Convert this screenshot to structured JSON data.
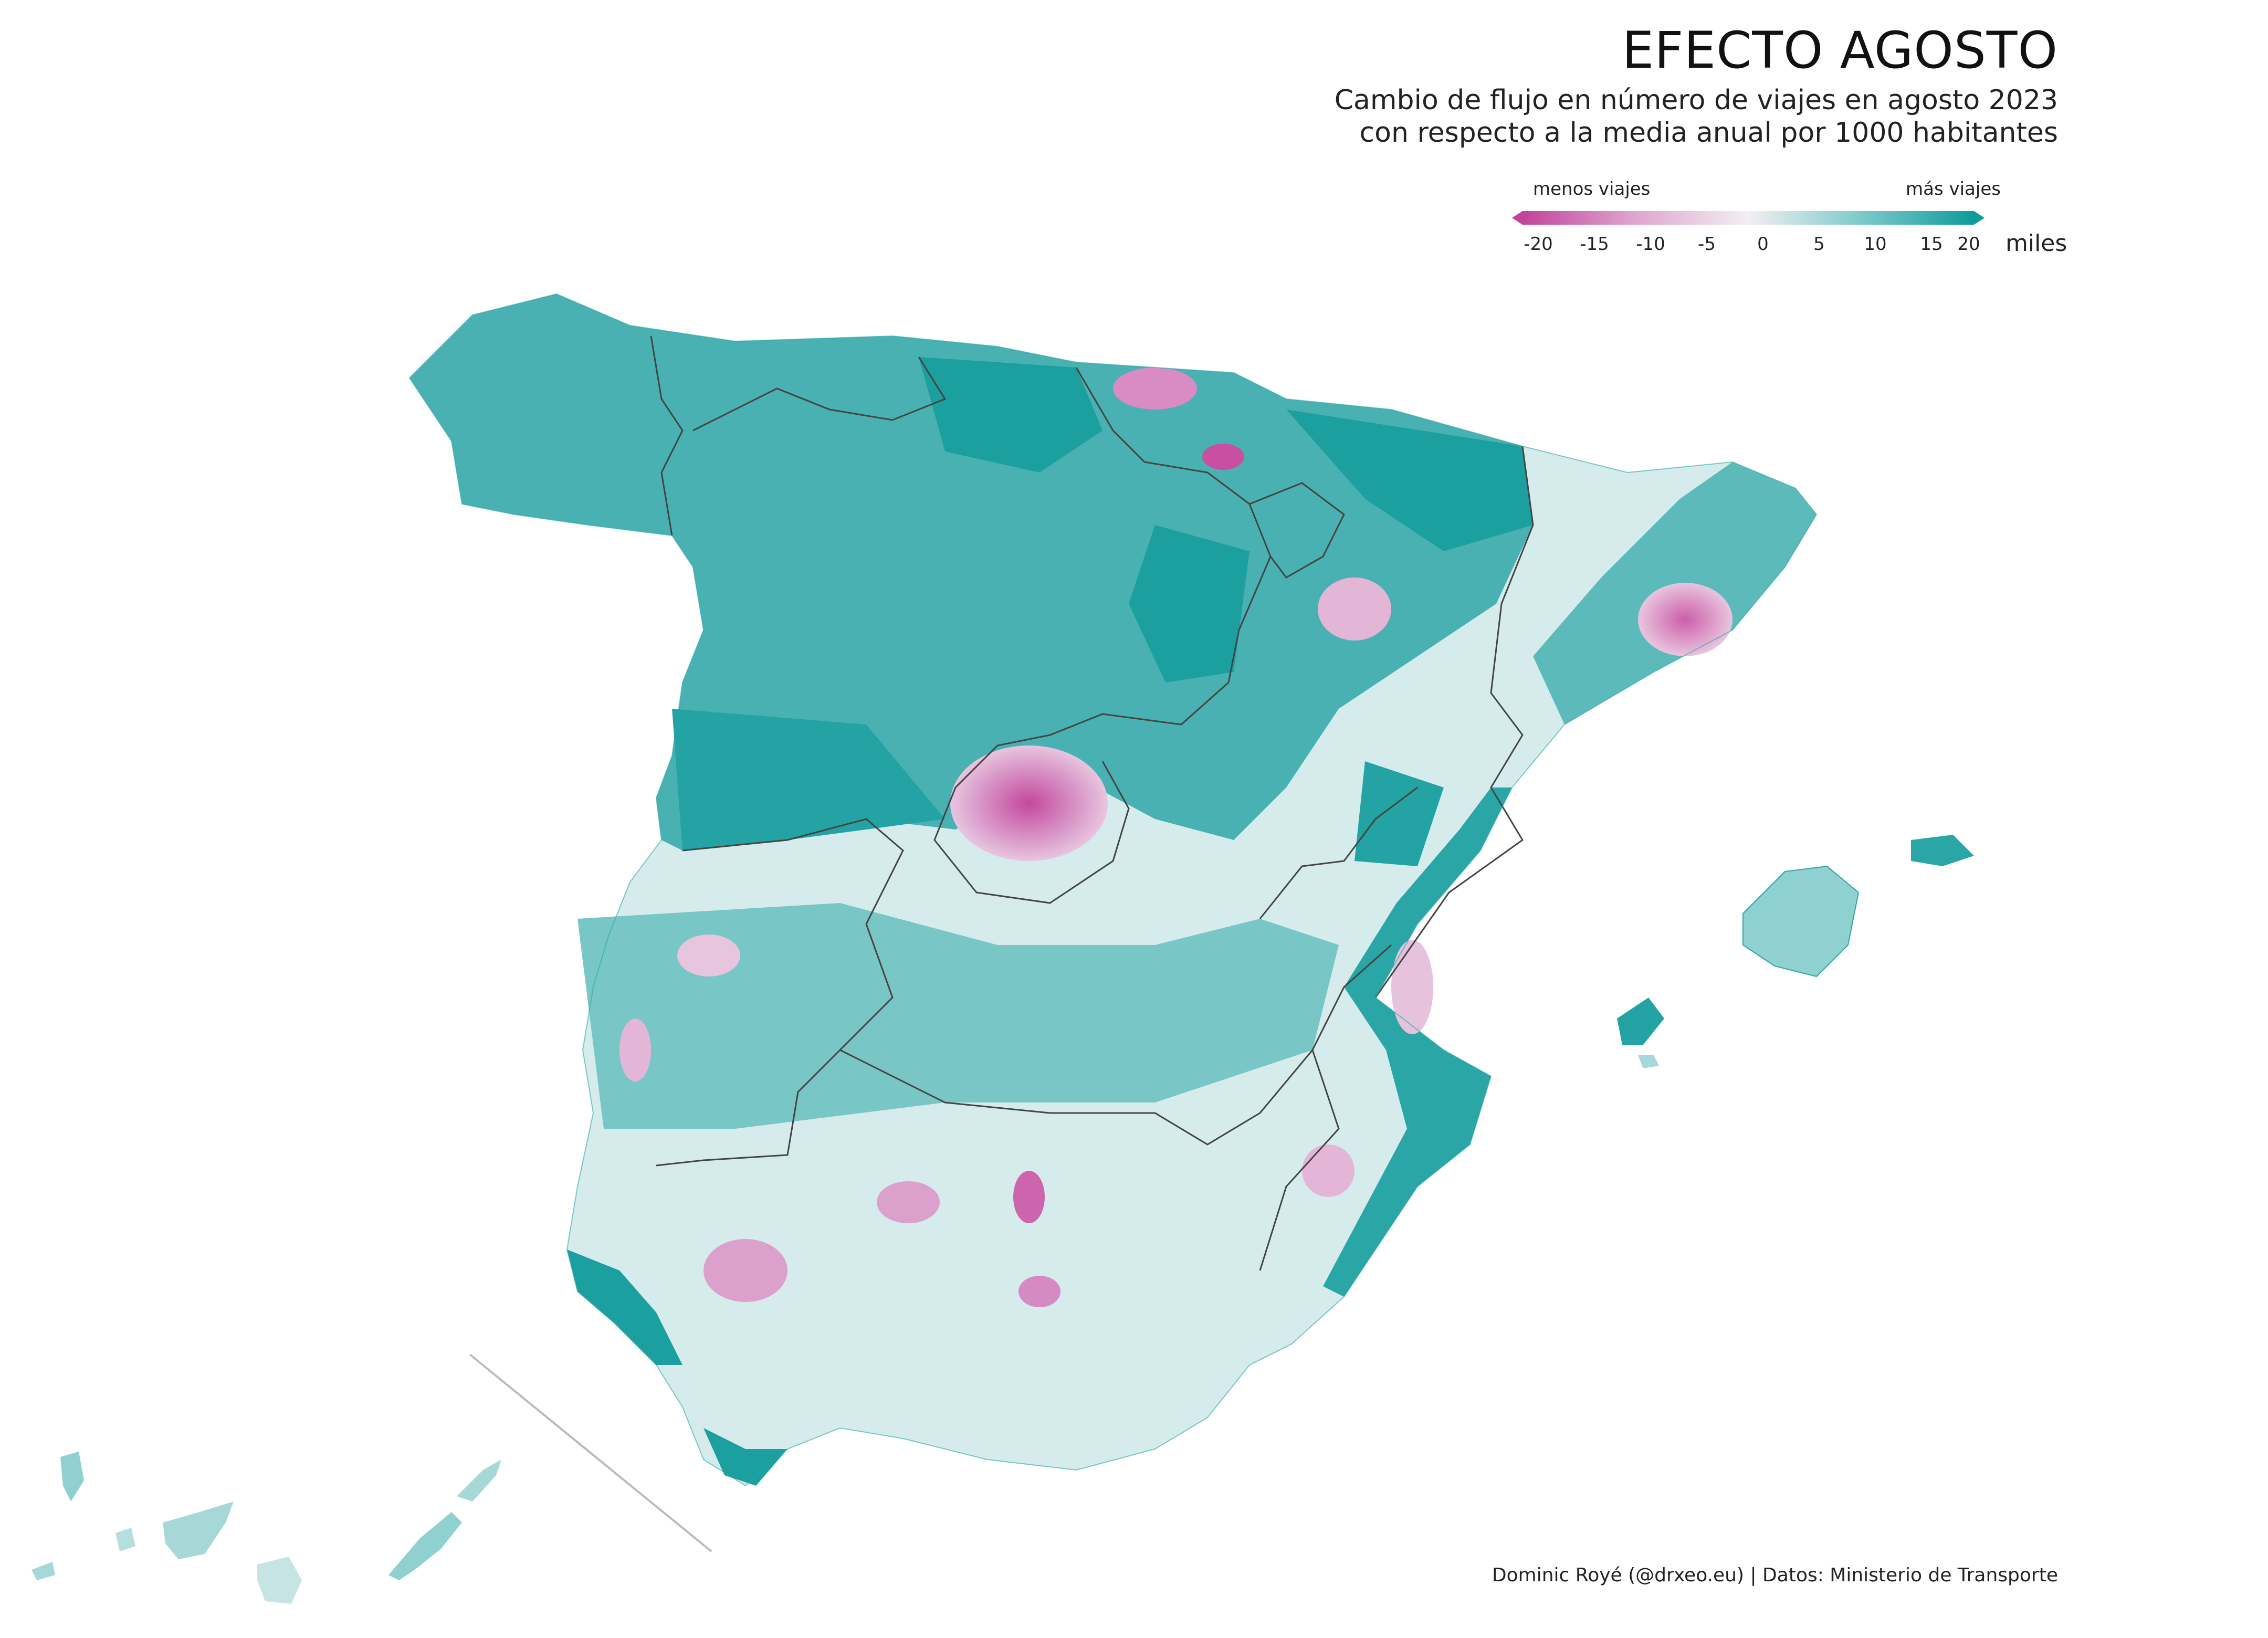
{
  "title": "EFECTO AGOSTO",
  "subtitle_line1": "Cambio de flujo en número de viajes en agosto 2023",
  "subtitle_line2": "con respecto a la media anual por 1000 habitantes",
  "legend": {
    "left_label": "menos viajes",
    "right_label": "más viajes",
    "unit": "miles",
    "ticks": [
      "-20",
      "-15",
      "-10",
      "-5",
      "0",
      "5",
      "10",
      "15",
      "20"
    ],
    "colors": {
      "low": "#c2449b",
      "mid": "#f3eff2",
      "high": "#0f9b9b"
    }
  },
  "caption": "Dominic Royé (@drxeo.eu) | Datos: Ministerio de Transporte"
}
